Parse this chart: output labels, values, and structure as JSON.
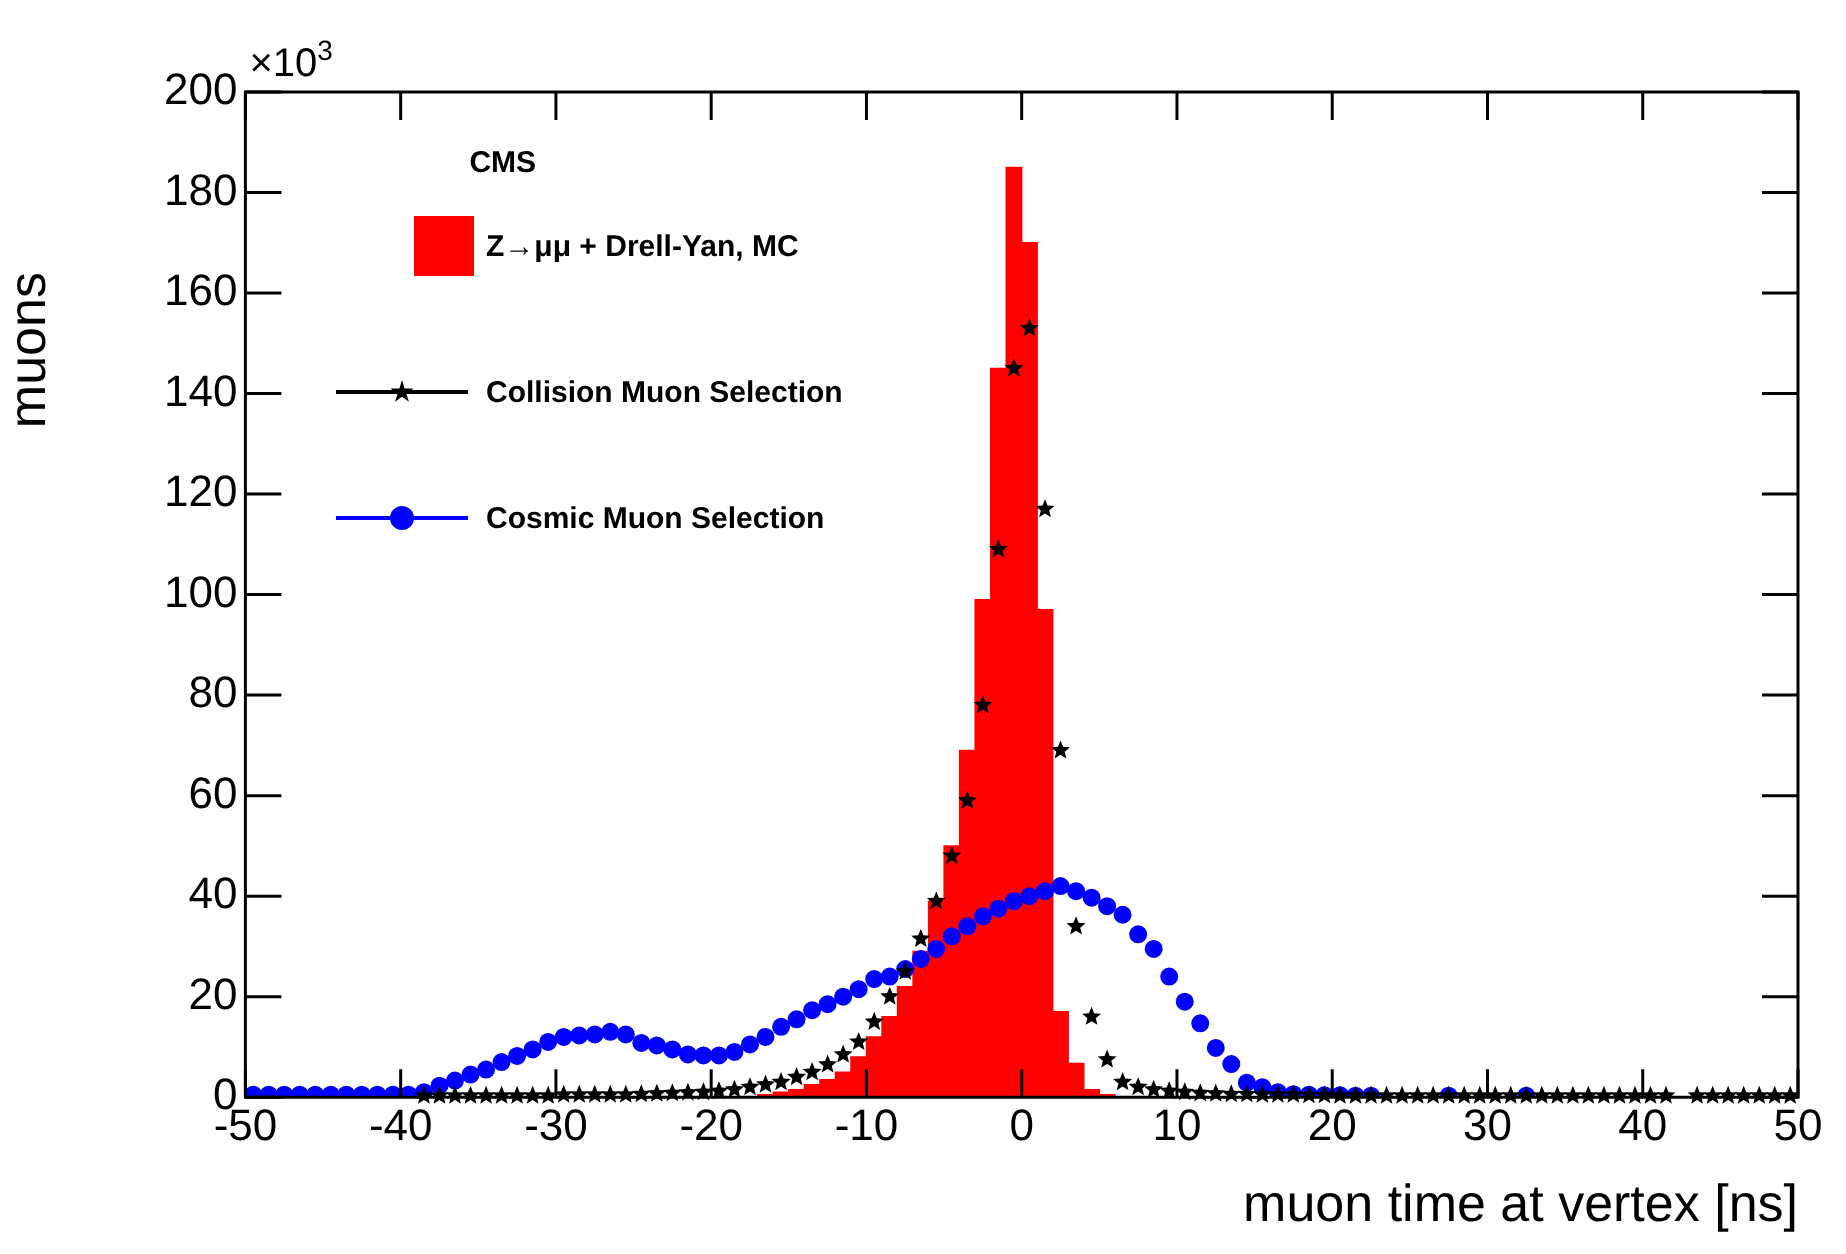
{
  "chart_data": {
    "type": "histogram",
    "xlabel": "muon time at vertex [ns]",
    "ylabel": "muons",
    "annotations": [
      "CMS",
      "×10$^{3}$"
    ],
    "xlim": [
      -50,
      50
    ],
    "xticks": [
      -50,
      -40,
      -30,
      -20,
      -10,
      0,
      10,
      20,
      30,
      40,
      50
    ],
    "ylim": [
      0,
      200
    ],
    "yticks": [
      0,
      20,
      40,
      60,
      80,
      100,
      120,
      140,
      160,
      180,
      200
    ],
    "grid": false,
    "legend": "top left",
    "series": [
      {
        "name": "Z→μμ + Drell-Yan, MC",
        "color": "#ff0000",
        "bins": [
          -18,
          -17,
          -16,
          -15,
          -14,
          -13,
          -12,
          -11,
          -10,
          -9,
          -8,
          -7,
          -6,
          -5,
          -4,
          -3,
          -2,
          -1,
          0,
          1,
          2,
          3,
          4,
          5,
          6
        ],
        "values": [
          null,
          0.5,
          1,
          1.5,
          2.5,
          3.5,
          5,
          8,
          12,
          16,
          22,
          29,
          39,
          50,
          69,
          99,
          145,
          185,
          170,
          97,
          17,
          6.7,
          1.5,
          0.5
        ]
      },
      {
        "name": "Collision Muon Selection",
        "type": "scatter",
        "marker": "star",
        "color": "#000000",
        "x": [
          -38.5,
          -37.5,
          -36.5,
          -35.5,
          -34.5,
          -33.5,
          -32.5,
          -31.5,
          -30.5,
          -29.5,
          -28.5,
          -27.5,
          -26.5,
          -25.5,
          -24.5,
          -23.5,
          -22.5,
          -21.5,
          -20.5,
          -19.5,
          -18.5,
          -17.5,
          -16.5,
          -15.5,
          -14.5,
          -13.5,
          -12.5,
          -11.5,
          -10.5,
          -9.5,
          -8.5,
          -7.5,
          -6.5,
          -5.5,
          -4.5,
          -3.5,
          -2.5,
          -1.5,
          -0.5,
          0.5,
          1.5,
          2.5,
          3.5,
          4.5,
          5.5,
          6.5,
          7.5,
          8.5,
          9.5,
          10.5,
          11.5,
          12.5,
          13.5,
          14.5,
          15.5,
          16.5,
          17.5,
          18.5,
          19.5,
          20.5,
          21.5,
          22.5,
          23.5,
          24.5,
          25.5,
          26.5,
          27.5,
          28.5,
          29.5,
          30.5,
          31.5,
          32.5,
          33.5,
          34.5,
          35.5,
          36.5,
          37.5,
          38.5,
          39.5,
          40.5,
          41.5,
          42.5,
          43.5,
          44.5,
          45.5,
          46.5,
          47.5,
          48.5,
          49.5
        ],
        "values": [
          0.3,
          0.3,
          0.3,
          0.3,
          0.3,
          0.3,
          0.3,
          0.3,
          0.3,
          0.5,
          0.5,
          0.5,
          0.5,
          0.5,
          0.6,
          0.7,
          0.8,
          0.9,
          1,
          1.2,
          1.5,
          2,
          2.5,
          3,
          4,
          5,
          6.5,
          8.5,
          11,
          15,
          20,
          25,
          31.5,
          39,
          48,
          59,
          78,
          109,
          145,
          153,
          117,
          69,
          34,
          16,
          7.5,
          3,
          2,
          1.5,
          1.2,
          1,
          0.8,
          0.7,
          0.6,
          0.6,
          0.5,
          0.5,
          0.5,
          0.4,
          0.4,
          0.3,
          0.3,
          0.3,
          0.3,
          0.3,
          0.3,
          0.3,
          0.3,
          0.3,
          0.3,
          0.3,
          0.3,
          0.3,
          0.3,
          0.3,
          0.3,
          0.3,
          0.3,
          0.3,
          0.3,
          0.3,
          0.3,
          null,
          0.3,
          0.3,
          0.3,
          0.3,
          0.3,
          0.3,
          0.3
        ]
      },
      {
        "name": "Cosmic Muon Selection",
        "type": "scatter",
        "marker": "circle",
        "color": "#0000ff",
        "x": [
          -49.5,
          -48.5,
          -47.5,
          -46.5,
          -45.5,
          -44.5,
          -43.5,
          -42.5,
          -41.5,
          -40.5,
          -39.5,
          -38.5,
          -37.5,
          -36.5,
          -35.5,
          -34.5,
          -33.5,
          -32.5,
          -31.5,
          -30.5,
          -29.5,
          -28.5,
          -27.5,
          -26.5,
          -25.5,
          -24.5,
          -23.5,
          -22.5,
          -21.5,
          -20.5,
          -19.5,
          -18.5,
          -17.5,
          -16.5,
          -15.5,
          -14.5,
          -13.5,
          -12.5,
          -11.5,
          -10.5,
          -9.5,
          -8.5,
          -7.5,
          -6.5,
          -5.5,
          -4.5,
          -3.5,
          -2.5,
          -1.5,
          -0.5,
          0.5,
          1.5,
          2.5,
          3.5,
          4.5,
          5.5,
          6.5,
          7.5,
          8.5,
          9.5,
          10.5,
          11.5,
          12.5,
          13.5,
          14.5,
          15.5,
          16.5,
          17.5,
          18.5,
          19.5,
          20.5,
          21.5,
          22.5,
          27.5,
          32.5
        ],
        "values": [
          0.5,
          0.5,
          0.5,
          0.5,
          0.5,
          0.5,
          0.5,
          0.5,
          0.5,
          0.5,
          0.5,
          1,
          2.3,
          3.3,
          4.5,
          5.5,
          7,
          8.2,
          9.5,
          11,
          12,
          12.3,
          12.5,
          13,
          12.5,
          10.8,
          10.3,
          9.5,
          8.5,
          8.3,
          8.3,
          9,
          10.5,
          12,
          14,
          15.5,
          17.3,
          18.5,
          20,
          21.5,
          23.5,
          24,
          25.5,
          27.5,
          29.5,
          32,
          34,
          36,
          37.5,
          39,
          40,
          41,
          42,
          41,
          39.7,
          38,
          36.3,
          32.4,
          29.5,
          24,
          19,
          14.7,
          9.8,
          6.6,
          2.9,
          2,
          1,
          0.6,
          0.5,
          0.4,
          0.4,
          0.3,
          0.3,
          0.3,
          0.3
        ]
      }
    ]
  }
}
